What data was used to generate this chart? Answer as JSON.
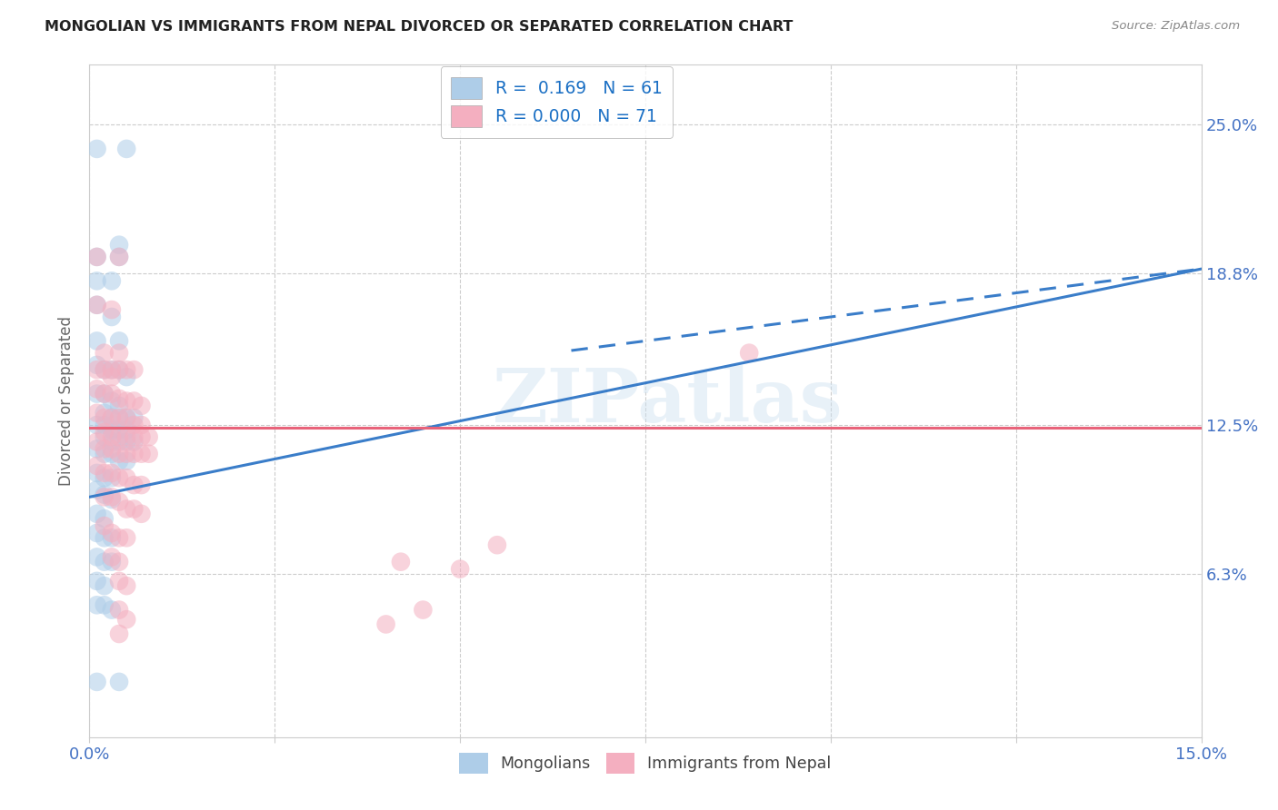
{
  "title": "MONGOLIAN VS IMMIGRANTS FROM NEPAL DIVORCED OR SEPARATED CORRELATION CHART",
  "source": "Source: ZipAtlas.com",
  "ylabel": "Divorced or Separated",
  "ytick_labels": [
    "25.0%",
    "18.8%",
    "12.5%",
    "6.3%"
  ],
  "ytick_values": [
    0.25,
    0.188,
    0.125,
    0.063
  ],
  "xlim": [
    0.0,
    0.15
  ],
  "ylim": [
    -0.005,
    0.275
  ],
  "mongolian_color": "#aecde8",
  "nepal_color": "#f4afc0",
  "mongolian_line_color": "#3a7dc9",
  "nepal_line_color": "#e8637a",
  "watermark": "ZIPatlas",
  "mongolian_trend_x": [
    0.0,
    0.15
  ],
  "mongolian_trend_y": [
    0.095,
    0.19
  ],
  "nepal_trend_x": [
    0.0,
    0.15
  ],
  "nepal_trend_y": [
    0.124,
    0.124
  ],
  "mongolian_scatter": [
    [
      0.001,
      0.24
    ],
    [
      0.005,
      0.24
    ],
    [
      0.001,
      0.195
    ],
    [
      0.004,
      0.195
    ],
    [
      0.001,
      0.185
    ],
    [
      0.003,
      0.185
    ],
    [
      0.001,
      0.175
    ],
    [
      0.003,
      0.17
    ],
    [
      0.001,
      0.16
    ],
    [
      0.004,
      0.16
    ],
    [
      0.001,
      0.15
    ],
    [
      0.002,
      0.148
    ],
    [
      0.003,
      0.148
    ],
    [
      0.004,
      0.148
    ],
    [
      0.005,
      0.145
    ],
    [
      0.001,
      0.138
    ],
    [
      0.002,
      0.138
    ],
    [
      0.003,
      0.135
    ],
    [
      0.004,
      0.133
    ],
    [
      0.002,
      0.13
    ],
    [
      0.003,
      0.128
    ],
    [
      0.004,
      0.128
    ],
    [
      0.005,
      0.128
    ],
    [
      0.006,
      0.128
    ],
    [
      0.001,
      0.125
    ],
    [
      0.002,
      0.125
    ],
    [
      0.003,
      0.123
    ],
    [
      0.004,
      0.123
    ],
    [
      0.005,
      0.123
    ],
    [
      0.002,
      0.12
    ],
    [
      0.003,
      0.118
    ],
    [
      0.004,
      0.118
    ],
    [
      0.005,
      0.118
    ],
    [
      0.006,
      0.118
    ],
    [
      0.001,
      0.115
    ],
    [
      0.002,
      0.113
    ],
    [
      0.003,
      0.113
    ],
    [
      0.004,
      0.11
    ],
    [
      0.005,
      0.11
    ],
    [
      0.001,
      0.105
    ],
    [
      0.002,
      0.103
    ],
    [
      0.003,
      0.103
    ],
    [
      0.001,
      0.098
    ],
    [
      0.002,
      0.096
    ],
    [
      0.003,
      0.094
    ],
    [
      0.001,
      0.088
    ],
    [
      0.002,
      0.086
    ],
    [
      0.001,
      0.08
    ],
    [
      0.002,
      0.078
    ],
    [
      0.003,
      0.078
    ],
    [
      0.001,
      0.07
    ],
    [
      0.002,
      0.068
    ],
    [
      0.003,
      0.068
    ],
    [
      0.001,
      0.06
    ],
    [
      0.002,
      0.058
    ],
    [
      0.001,
      0.05
    ],
    [
      0.002,
      0.05
    ],
    [
      0.003,
      0.048
    ],
    [
      0.001,
      0.018
    ],
    [
      0.004,
      0.018
    ],
    [
      0.004,
      0.2
    ]
  ],
  "nepal_scatter": [
    [
      0.001,
      0.195
    ],
    [
      0.004,
      0.195
    ],
    [
      0.001,
      0.175
    ],
    [
      0.003,
      0.173
    ],
    [
      0.002,
      0.155
    ],
    [
      0.004,
      0.155
    ],
    [
      0.001,
      0.148
    ],
    [
      0.002,
      0.148
    ],
    [
      0.003,
      0.148
    ],
    [
      0.004,
      0.148
    ],
    [
      0.005,
      0.148
    ],
    [
      0.006,
      0.148
    ],
    [
      0.001,
      0.14
    ],
    [
      0.002,
      0.138
    ],
    [
      0.003,
      0.138
    ],
    [
      0.004,
      0.136
    ],
    [
      0.005,
      0.135
    ],
    [
      0.006,
      0.135
    ],
    [
      0.007,
      0.133
    ],
    [
      0.001,
      0.13
    ],
    [
      0.002,
      0.128
    ],
    [
      0.003,
      0.128
    ],
    [
      0.004,
      0.128
    ],
    [
      0.005,
      0.128
    ],
    [
      0.006,
      0.125
    ],
    [
      0.007,
      0.125
    ],
    [
      0.002,
      0.122
    ],
    [
      0.003,
      0.12
    ],
    [
      0.004,
      0.12
    ],
    [
      0.005,
      0.12
    ],
    [
      0.006,
      0.12
    ],
    [
      0.007,
      0.12
    ],
    [
      0.008,
      0.12
    ],
    [
      0.001,
      0.118
    ],
    [
      0.002,
      0.115
    ],
    [
      0.003,
      0.115
    ],
    [
      0.004,
      0.113
    ],
    [
      0.005,
      0.113
    ],
    [
      0.006,
      0.113
    ],
    [
      0.007,
      0.113
    ],
    [
      0.008,
      0.113
    ],
    [
      0.001,
      0.108
    ],
    [
      0.002,
      0.105
    ],
    [
      0.003,
      0.105
    ],
    [
      0.004,
      0.103
    ],
    [
      0.005,
      0.103
    ],
    [
      0.006,
      0.1
    ],
    [
      0.007,
      0.1
    ],
    [
      0.002,
      0.095
    ],
    [
      0.003,
      0.095
    ],
    [
      0.004,
      0.093
    ],
    [
      0.005,
      0.09
    ],
    [
      0.006,
      0.09
    ],
    [
      0.007,
      0.088
    ],
    [
      0.002,
      0.083
    ],
    [
      0.003,
      0.08
    ],
    [
      0.004,
      0.078
    ],
    [
      0.005,
      0.078
    ],
    [
      0.003,
      0.07
    ],
    [
      0.004,
      0.068
    ],
    [
      0.004,
      0.06
    ],
    [
      0.005,
      0.058
    ],
    [
      0.004,
      0.048
    ],
    [
      0.005,
      0.044
    ],
    [
      0.004,
      0.038
    ],
    [
      0.003,
      0.145
    ],
    [
      0.089,
      0.155
    ],
    [
      0.042,
      0.068
    ],
    [
      0.045,
      0.048
    ],
    [
      0.04,
      0.042
    ],
    [
      0.055,
      0.075
    ],
    [
      0.05,
      0.065
    ]
  ]
}
